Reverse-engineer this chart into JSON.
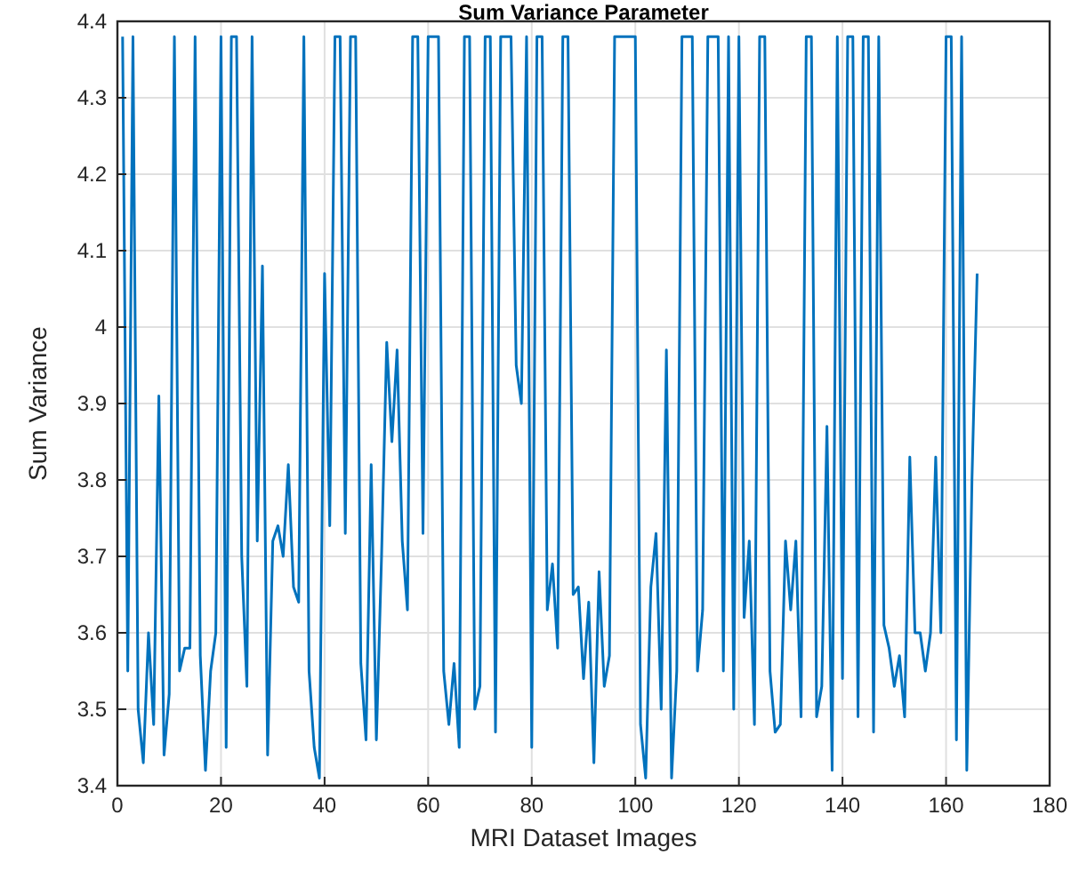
{
  "chart_data": {
    "type": "line",
    "title": "Sum Variance Parameter",
    "xlabel": "MRI Dataset Images",
    "ylabel": "Sum Variance",
    "x": [
      1,
      2,
      3,
      4,
      5,
      6,
      7,
      8,
      9,
      10,
      11,
      12,
      13,
      14,
      15,
      16,
      17,
      18,
      19,
      20,
      21,
      22,
      23,
      24,
      25,
      26,
      27,
      28,
      29,
      30,
      31,
      32,
      33,
      34,
      35,
      36,
      37,
      38,
      39,
      40,
      41,
      42,
      43,
      44,
      45,
      46,
      47,
      48,
      49,
      50,
      51,
      52,
      53,
      54,
      55,
      56,
      57,
      58,
      59,
      60,
      61,
      62,
      63,
      64,
      65,
      66,
      67,
      68,
      69,
      70,
      71,
      72,
      73,
      74,
      75,
      76,
      77,
      78,
      79,
      80,
      81,
      82,
      83,
      84,
      85,
      86,
      87,
      88,
      89,
      90,
      91,
      92,
      93,
      94,
      95,
      96,
      97,
      98,
      99,
      100,
      101,
      102,
      103,
      104,
      105,
      106,
      107,
      108,
      109,
      110,
      111,
      112,
      113,
      114,
      115,
      116,
      117,
      118,
      119,
      120,
      121,
      122,
      123,
      124,
      125,
      126,
      127,
      128,
      129,
      130,
      131,
      132,
      133,
      134,
      135,
      136,
      137,
      138,
      139,
      140,
      141,
      142,
      143,
      144,
      145,
      146,
      147,
      148,
      149,
      150,
      151,
      152,
      153,
      154,
      155,
      156,
      157,
      158,
      159,
      160,
      161,
      162,
      163,
      164,
      165,
      166
    ],
    "series": [
      {
        "color": "#0072bd",
        "values": [
          4.38,
          3.55,
          4.38,
          3.5,
          3.43,
          3.6,
          3.48,
          3.91,
          3.44,
          3.52,
          4.38,
          3.55,
          3.58,
          3.58,
          4.38,
          3.57,
          3.42,
          3.55,
          3.6,
          4.38,
          3.45,
          4.38,
          4.38,
          3.7,
          3.53,
          4.38,
          3.72,
          4.08,
          3.44,
          3.72,
          3.74,
          3.7,
          3.82,
          3.66,
          3.64,
          4.38,
          3.55,
          3.45,
          3.41,
          4.07,
          3.74,
          4.38,
          4.38,
          3.73,
          4.38,
          4.38,
          3.56,
          3.46,
          3.82,
          3.46,
          3.7,
          3.98,
          3.85,
          3.97,
          3.72,
          3.63,
          4.38,
          4.38,
          3.73,
          4.38,
          4.38,
          4.38,
          3.55,
          3.48,
          3.56,
          3.45,
          4.38,
          4.38,
          3.5,
          3.53,
          4.38,
          4.38,
          3.47,
          4.38,
          4.38,
          4.38,
          3.95,
          3.9,
          4.38,
          3.45,
          4.38,
          4.38,
          3.63,
          3.69,
          3.58,
          4.38,
          4.38,
          3.65,
          3.66,
          3.54,
          3.64,
          3.43,
          3.68,
          3.53,
          3.57,
          4.38,
          4.38,
          4.38,
          4.38,
          4.38,
          3.48,
          3.41,
          3.66,
          3.73,
          3.5,
          3.97,
          3.41,
          3.55,
          4.38,
          4.38,
          4.38,
          3.55,
          3.63,
          4.38,
          4.38,
          4.38,
          3.55,
          4.38,
          3.5,
          4.38,
          3.62,
          3.72,
          3.48,
          4.38,
          4.38,
          3.55,
          3.47,
          3.48,
          3.72,
          3.63,
          3.72,
          3.49,
          4.38,
          4.38,
          3.49,
          3.53,
          3.87,
          3.42,
          4.38,
          3.54,
          4.38,
          4.38,
          3.49,
          4.38,
          4.38,
          3.47,
          4.38,
          3.61,
          3.58,
          3.53,
          3.57,
          3.49,
          3.83,
          3.6,
          3.6,
          3.55,
          3.6,
          3.83,
          3.6,
          4.38,
          4.38,
          3.46,
          4.38,
          3.42,
          3.8,
          4.07
        ]
      }
    ],
    "xlim": [
      0,
      180
    ],
    "xticks": [
      0,
      20,
      40,
      60,
      80,
      100,
      120,
      140,
      160,
      180
    ],
    "ylim": [
      3.4,
      4.4
    ],
    "yticks": [
      3.4,
      3.5,
      3.6,
      3.7,
      3.8,
      3.9,
      4,
      4.1,
      4.2,
      4.3,
      4.4
    ],
    "grid": true,
    "line_style": "solid",
    "marker": "none"
  }
}
